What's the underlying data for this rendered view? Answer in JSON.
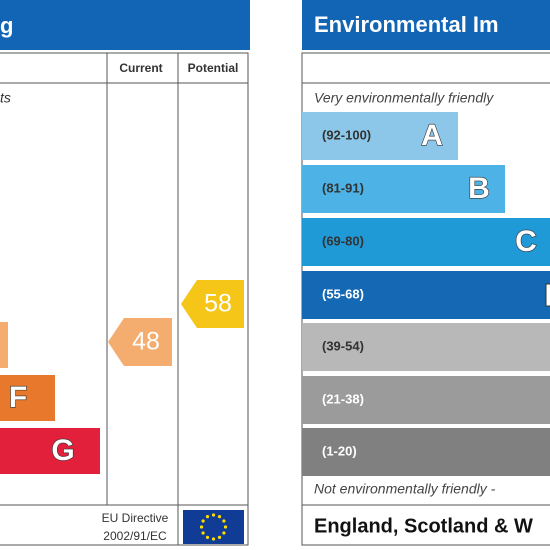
{
  "energy": {
    "title": "g",
    "note": "ts",
    "columns": [
      "Current",
      "Potential"
    ],
    "bands": [
      "F",
      "G"
    ],
    "current": "48",
    "potential": "58",
    "footer": [
      "EU Directive",
      "2002/91/EC"
    ]
  },
  "environmental": {
    "title": "Environmental Im",
    "top_note": "Very environmentally friendly",
    "bands": [
      {
        "range": "(92-100)",
        "letter": "A"
      },
      {
        "range": "(81-91)",
        "letter": "B"
      },
      {
        "range": "(69-80)",
        "letter": "C"
      },
      {
        "range": "(55-68)"
      },
      {
        "range": "(39-54)"
      },
      {
        "range": "(21-38)"
      },
      {
        "range": "(1-20)"
      }
    ],
    "bottom_note": "Not environmentally friendly -",
    "footer": "England, Scotland & W"
  }
}
